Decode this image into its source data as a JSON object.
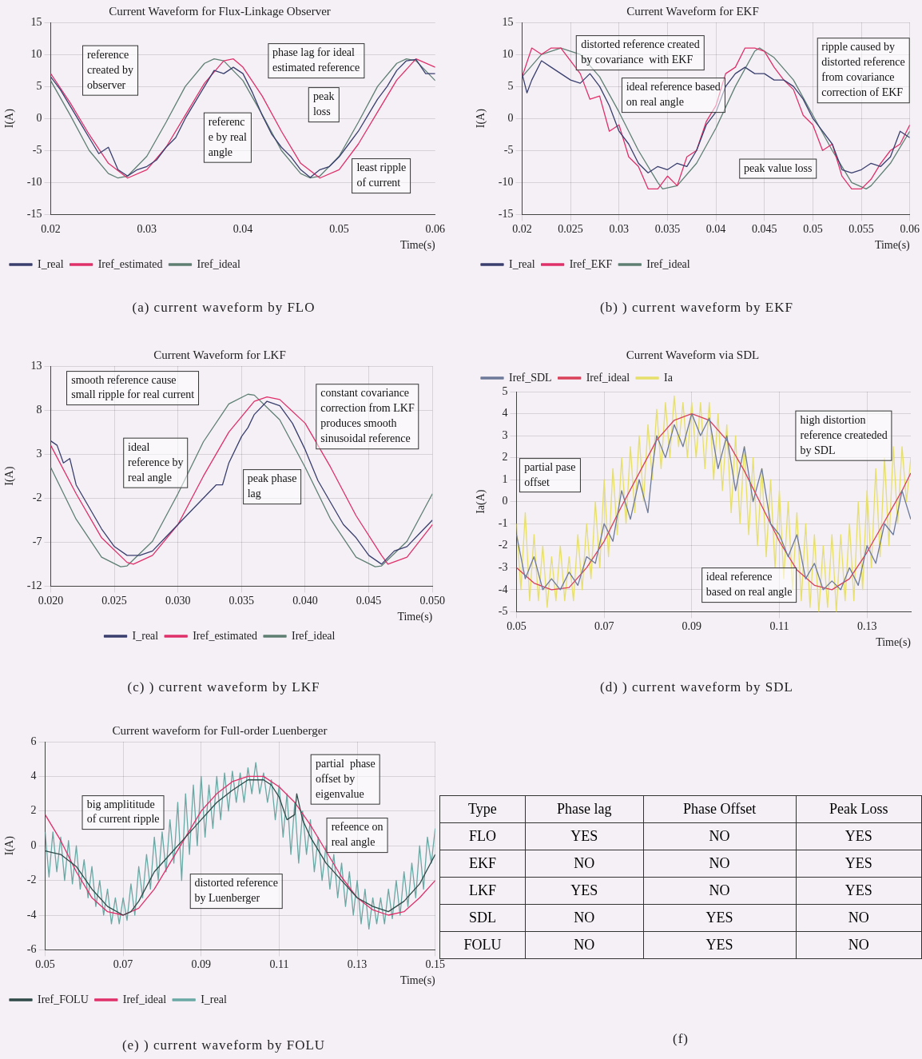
{
  "chart_data": [
    {
      "type": "line",
      "title": "Current Waveform for Flux-Linkage Observer",
      "xlabel": "Time(s)",
      "ylabel": "I(A)",
      "xlim": [
        0.02,
        0.06
      ],
      "xticks": [
        0.02,
        0.03,
        0.04,
        0.05,
        0.06
      ],
      "ylim": [
        -15,
        15
      ],
      "yticks": [
        -15,
        -10,
        -5,
        0,
        5,
        10,
        15
      ],
      "grid": "y",
      "legend": "bottom left",
      "series": [
        {
          "name": "I_real",
          "color": "#3a3f6e",
          "x": [
            0.02,
            0.021,
            0.022,
            0.023,
            0.024,
            0.025,
            0.026,
            0.027,
            0.028,
            0.029,
            0.03,
            0.031,
            0.032,
            0.033,
            0.034,
            0.035,
            0.036,
            0.037,
            0.038,
            0.039,
            0.04,
            0.041,
            0.042,
            0.043,
            0.044,
            0.045,
            0.046,
            0.047,
            0.048,
            0.049,
            0.05,
            0.051,
            0.052,
            0.053,
            0.054,
            0.055,
            0.056,
            0.057,
            0.058,
            0.059,
            0.06
          ],
          "values": [
            6.5,
            4.5,
            2.0,
            -0.5,
            -3.0,
            -5.5,
            -4.5,
            -8.0,
            -9.0,
            -8.0,
            -7.5,
            -6.5,
            -4.5,
            -3.0,
            0.0,
            2.5,
            5.0,
            7.5,
            7.0,
            8.0,
            7.0,
            4.0,
            0.5,
            -2.5,
            -4.5,
            -6.0,
            -8.0,
            -9.2,
            -8.0,
            -7.5,
            -6.0,
            -4.0,
            -2.0,
            0.5,
            3.0,
            5.0,
            7.5,
            9.0,
            9.2,
            7.0,
            7.0
          ]
        },
        {
          "name": "Iref_estimated",
          "color": "#e0306a",
          "x": [
            0.02,
            0.022,
            0.024,
            0.026,
            0.028,
            0.03,
            0.032,
            0.034,
            0.036,
            0.038,
            0.039,
            0.04,
            0.042,
            0.044,
            0.046,
            0.048,
            0.05,
            0.052,
            0.054,
            0.056,
            0.058,
            0.06
          ],
          "values": [
            7.0,
            2.5,
            -2.5,
            -7.0,
            -9.3,
            -8.0,
            -4.5,
            0.5,
            5.5,
            9.0,
            9.3,
            8.0,
            3.5,
            -2.0,
            -7.0,
            -9.3,
            -8.0,
            -4.0,
            1.0,
            6.0,
            9.3,
            8.0
          ]
        },
        {
          "name": "Iref_ideal",
          "color": "#5f7f73",
          "x": [
            0.02,
            0.022,
            0.024,
            0.026,
            0.027,
            0.028,
            0.03,
            0.032,
            0.034,
            0.036,
            0.037,
            0.038,
            0.04,
            0.042,
            0.044,
            0.046,
            0.047,
            0.048,
            0.05,
            0.052,
            0.054,
            0.056,
            0.057,
            0.058,
            0.06
          ],
          "values": [
            5.9,
            0.6,
            -5.0,
            -8.6,
            -9.3,
            -9.0,
            -5.9,
            -0.6,
            5.0,
            8.6,
            9.3,
            9.0,
            5.9,
            0.6,
            -5.0,
            -8.6,
            -9.3,
            -9.0,
            -5.9,
            -0.6,
            5.0,
            8.6,
            9.3,
            9.0,
            5.9
          ]
        }
      ],
      "annotations": [
        "(a) current waveform by FLO",
        "reference\ncreated by\nobserver",
        "phase lag for ideal\nestimated reference",
        "peak\nloss",
        "referenc\ne by real\nangle",
        "least ripple\nof current"
      ]
    },
    {
      "type": "line",
      "title": "Current Waveform for EKF",
      "xlabel": "Time(s)",
      "ylabel": "I(A)",
      "xlim": [
        0.02,
        0.06
      ],
      "xticks": [
        0.02,
        0.025,
        0.03,
        0.035,
        0.04,
        0.045,
        0.05,
        0.055,
        0.06
      ],
      "ylim": [
        -15,
        15
      ],
      "yticks": [
        -15,
        -10,
        -5,
        0,
        5,
        10,
        15
      ],
      "grid": true,
      "legend": "bottom left",
      "series": [
        {
          "name": "I_real",
          "color": "#3a3f6e",
          "x": [
            0.02,
            0.0205,
            0.021,
            0.022,
            0.023,
            0.024,
            0.025,
            0.026,
            0.027,
            0.028,
            0.029,
            0.03,
            0.031,
            0.032,
            0.033,
            0.034,
            0.035,
            0.036,
            0.037,
            0.038,
            0.039,
            0.04,
            0.041,
            0.042,
            0.043,
            0.044,
            0.045,
            0.046,
            0.047,
            0.048,
            0.049,
            0.05,
            0.051,
            0.052,
            0.053,
            0.054,
            0.055,
            0.056,
            0.057,
            0.058,
            0.059,
            0.06
          ],
          "values": [
            7,
            4,
            6,
            9,
            8,
            7,
            6,
            5.5,
            7,
            5,
            2,
            -2,
            -4,
            -7,
            -8.5,
            -7.5,
            -8,
            -7,
            -7.5,
            -5,
            -1,
            1,
            5,
            7,
            8,
            7,
            7,
            6,
            6,
            5,
            3,
            0,
            -2,
            -4,
            -8,
            -8.5,
            -8,
            -7,
            -7.5,
            -6,
            -2,
            -3
          ]
        },
        {
          "name": "Iref_EKF",
          "color": "#e0306a",
          "x": [
            0.02,
            0.021,
            0.022,
            0.023,
            0.024,
            0.025,
            0.026,
            0.027,
            0.028,
            0.029,
            0.03,
            0.031,
            0.032,
            0.033,
            0.034,
            0.035,
            0.036,
            0.037,
            0.038,
            0.039,
            0.04,
            0.041,
            0.042,
            0.043,
            0.044,
            0.045,
            0.046,
            0.047,
            0.048,
            0.049,
            0.05,
            0.051,
            0.052,
            0.053,
            0.054,
            0.055,
            0.056,
            0.057,
            0.058,
            0.059,
            0.06
          ],
          "values": [
            6.5,
            11,
            10,
            11,
            11,
            9,
            7,
            3,
            3.5,
            -2,
            -1,
            -6,
            -7.5,
            -11,
            -11,
            -9,
            -10.5,
            -6,
            -5,
            -0.5,
            2,
            7,
            8,
            11,
            11,
            10.5,
            8,
            6,
            4.5,
            0.5,
            -1,
            -5,
            -4,
            -9,
            -11,
            -11,
            -9.5,
            -7,
            -5,
            -4,
            -1
          ]
        },
        {
          "name": "Iref_ideal",
          "color": "#5f7f73",
          "x": [
            0.02,
            0.022,
            0.024,
            0.026,
            0.028,
            0.03,
            0.032,
            0.034,
            0.0345,
            0.036,
            0.038,
            0.04,
            0.042,
            0.044,
            0.0445,
            0.046,
            0.048,
            0.05,
            0.052,
            0.054,
            0.0555,
            0.056,
            0.058,
            0.06
          ],
          "values": [
            6.5,
            10,
            11,
            10,
            6.5,
            1,
            -5,
            -10,
            -11,
            -10.5,
            -7,
            -1.5,
            5,
            10.5,
            11,
            9.5,
            6,
            0.5,
            -5,
            -10,
            -11,
            -10.5,
            -7,
            -2
          ]
        }
      ],
      "annotations": [
        "(b) ) current waveform by EKF",
        "distorted reference created\nby covariance  with EKF",
        "ideal reference based\non real angle",
        "peak value loss",
        "ripple caused by\ndistorted reference\nfrom covariance\ncorrection of EKF"
      ]
    },
    {
      "type": "line",
      "title": "Current Waveform for LKF",
      "xlabel": "Time(s)",
      "ylabel": "I(A)",
      "xlim": [
        0.02,
        0.05
      ],
      "xticks": [
        {
          "value": 0.02,
          "label": "0.020"
        },
        {
          "value": 0.025,
          "label": "0.025"
        },
        {
          "value": 0.03,
          "label": "0.030"
        },
        {
          "value": 0.035,
          "label": "0.035"
        },
        {
          "value": 0.04,
          "label": "0.040"
        },
        {
          "value": 0.045,
          "label": "0.045"
        },
        {
          "value": 0.05,
          "label": "0.050"
        }
      ],
      "ylim": [
        -12,
        13
      ],
      "yticks": [
        -12,
        -7,
        -2,
        3,
        8,
        13
      ],
      "grid": true,
      "legend": "bottom",
      "series": [
        {
          "name": "I_real",
          "color": "#3a3f6e",
          "x": [
            0.02,
            0.0205,
            0.021,
            0.0215,
            0.022,
            0.023,
            0.024,
            0.025,
            0.026,
            0.027,
            0.028,
            0.029,
            0.03,
            0.031,
            0.032,
            0.033,
            0.0335,
            0.034,
            0.035,
            0.0355,
            0.036,
            0.037,
            0.038,
            0.039,
            0.04,
            0.041,
            0.042,
            0.043,
            0.044,
            0.045,
            0.046,
            0.047,
            0.048,
            0.049,
            0.05
          ],
          "values": [
            4.5,
            4,
            2,
            2.5,
            -0.5,
            -3,
            -5.5,
            -7.5,
            -8.5,
            -8.5,
            -8,
            -6.5,
            -5,
            -3.5,
            -2,
            -0.5,
            -0.5,
            2,
            5,
            6,
            7.5,
            9,
            8.5,
            6.5,
            3.5,
            0,
            -2.5,
            -5,
            -6.5,
            -8.5,
            -9.5,
            -8,
            -7.5,
            -6,
            -4.5
          ]
        },
        {
          "name": "Iref_estimated",
          "color": "#e0306a",
          "x": [
            0.02,
            0.022,
            0.024,
            0.026,
            0.0265,
            0.028,
            0.03,
            0.032,
            0.034,
            0.036,
            0.037,
            0.038,
            0.04,
            0.042,
            0.044,
            0.046,
            0.0465,
            0.048,
            0.05
          ],
          "values": [
            4,
            -1.5,
            -6.5,
            -9.3,
            -9.5,
            -8.5,
            -5,
            0.5,
            5.5,
            9,
            9.5,
            9.2,
            6.5,
            1.5,
            -4,
            -8.5,
            -9.5,
            -8.7,
            -5
          ]
        },
        {
          "name": "Iref_ideal",
          "color": "#5f7f73",
          "x": [
            0.02,
            0.022,
            0.024,
            0.0255,
            0.026,
            0.028,
            0.03,
            0.032,
            0.034,
            0.0355,
            0.036,
            0.038,
            0.04,
            0.042,
            0.044,
            0.0455,
            0.046,
            0.048,
            0.05
          ],
          "values": [
            1.5,
            -4.4,
            -8.7,
            -9.8,
            -9.7,
            -6.9,
            -1.5,
            4.4,
            8.7,
            9.8,
            9.7,
            6.9,
            1.5,
            -4.4,
            -8.7,
            -9.8,
            -9.7,
            -6.9,
            -1.5
          ]
        }
      ],
      "annotations": [
        "(c) ) current waveform by LKF",
        "smooth reference cause\nsmall ripple for real current",
        "ideal\nreference by\nreal angle",
        "peak phase\nlag",
        "constant covariance\ncorrection from LKF\nproduces smooth\nsinusoidal reference"
      ]
    },
    {
      "type": "line",
      "title": "Current Waveform via SDL",
      "xlabel": "Time(s)",
      "ylabel": "Ia(A)",
      "xlim": [
        0.05,
        0.14
      ],
      "xticks": [
        0.05,
        0.07,
        0.09,
        0.11,
        0.13
      ],
      "ylim": [
        -5,
        5
      ],
      "yticks": [
        -5,
        -4,
        -3,
        -2,
        -1,
        0,
        1,
        2,
        3,
        4,
        5
      ],
      "grid": true,
      "legend": "top left",
      "series": [
        {
          "name": "Iref_SDL",
          "color": "#6d7a99",
          "x": [
            0.05,
            0.052,
            0.054,
            0.056,
            0.058,
            0.06,
            0.062,
            0.064,
            0.066,
            0.068,
            0.07,
            0.072,
            0.074,
            0.076,
            0.078,
            0.08,
            0.081,
            0.082,
            0.084,
            0.086,
            0.088,
            0.09,
            0.092,
            0.094,
            0.096,
            0.098,
            0.1,
            0.102,
            0.104,
            0.106,
            0.108,
            0.11,
            0.112,
            0.114,
            0.116,
            0.118,
            0.12,
            0.122,
            0.124,
            0.126,
            0.128,
            0.13,
            0.132,
            0.134,
            0.136,
            0.138,
            0.14
          ],
          "values": [
            -1.5,
            -3.5,
            -2.5,
            -4,
            -3.5,
            -4,
            -3.2,
            -3.8,
            -2.5,
            -2.8,
            -1,
            -1.8,
            0.5,
            -0.8,
            1,
            -0.5,
            1.5,
            3,
            2,
            3.5,
            2.5,
            4,
            3,
            3.8,
            1.5,
            3,
            0.5,
            2.5,
            0,
            1.5,
            -1,
            -1.5,
            -2.5,
            -1.5,
            -3.5,
            -2.8,
            -4,
            -3.6,
            -4,
            -3,
            -3.8,
            -2,
            -2.8,
            -1,
            -1.5,
            0.5,
            -0.8
          ]
        },
        {
          "name": "Iref_ideal",
          "color": "#d9405a",
          "x": [
            0.05,
            0.054,
            0.058,
            0.062,
            0.066,
            0.07,
            0.074,
            0.078,
            0.082,
            0.086,
            0.09,
            0.094,
            0.098,
            0.102,
            0.106,
            0.11,
            0.114,
            0.118,
            0.122,
            0.126,
            0.13,
            0.134,
            0.138,
            0.14
          ],
          "values": [
            -3,
            -3.7,
            -4,
            -3.9,
            -3,
            -1.8,
            -0.2,
            1.3,
            2.8,
            3.7,
            4,
            3.7,
            2.8,
            1.4,
            -0.2,
            -1.8,
            -3.1,
            -3.8,
            -4,
            -3.5,
            -2.3,
            -0.9,
            0.5,
            1.3
          ]
        },
        {
          "name": "Ia",
          "color": "#e6df6a",
          "x": [
            0.05,
            0.051,
            0.052,
            0.053,
            0.054,
            0.055,
            0.056,
            0.057,
            0.058,
            0.059,
            0.06,
            0.061,
            0.062,
            0.063,
            0.064,
            0.065,
            0.066,
            0.067,
            0.068,
            0.069,
            0.07,
            0.071,
            0.072,
            0.073,
            0.074,
            0.075,
            0.076,
            0.077,
            0.078,
            0.079,
            0.08,
            0.081,
            0.082,
            0.083,
            0.084,
            0.085,
            0.086,
            0.087,
            0.088,
            0.089,
            0.09,
            0.091,
            0.092,
            0.093,
            0.094,
            0.095,
            0.096,
            0.097,
            0.098,
            0.099,
            0.1,
            0.101,
            0.102,
            0.103,
            0.104,
            0.105,
            0.106,
            0.107,
            0.108,
            0.109,
            0.11,
            0.111,
            0.112,
            0.113,
            0.114,
            0.115,
            0.116,
            0.117,
            0.118,
            0.119,
            0.12,
            0.121,
            0.122,
            0.123,
            0.124,
            0.125,
            0.126,
            0.127,
            0.128,
            0.129,
            0.13,
            0.131,
            0.132,
            0.133,
            0.134,
            0.135,
            0.136,
            0.137,
            0.138,
            0.139,
            0.14
          ],
          "values": [
            -1,
            -4,
            -0.5,
            -4.5,
            -1.5,
            -4.5,
            -2,
            -4.8,
            -2.5,
            -4.5,
            -2,
            -4.5,
            -2.5,
            -4.5,
            -1.5,
            -4,
            -1,
            -3.5,
            0,
            -3,
            1,
            -2.5,
            1.5,
            -1.5,
            2,
            -1,
            2.5,
            -0.5,
            3,
            0,
            3.5,
            1,
            4.2,
            1.5,
            4.5,
            2,
            4.8,
            2.5,
            4.5,
            2,
            4.5,
            2,
            4.5,
            1.5,
            4.5,
            1,
            4,
            0.5,
            3.5,
            -0.5,
            3,
            -1,
            2.5,
            -1.5,
            2,
            -2,
            1.5,
            -2.5,
            1,
            -3,
            0.5,
            -3.5,
            0,
            -4,
            -0.5,
            -4.5,
            -1,
            -4.8,
            -1.5,
            -5,
            -2,
            -4.8,
            -1.5,
            -5,
            -1.5,
            -4.5,
            -1,
            -4.5,
            0,
            -4,
            0.5,
            -3,
            1.5,
            -2.5,
            2,
            -2,
            2.5,
            -1,
            2.5,
            0,
            2
          ]
        }
      ],
      "annotations": [
        "(d) ) current waveform by SDL",
        "partial pase\noffset",
        "high distortion\nreference createded\nby SDL",
        "ideal reference\nbased on real angle"
      ]
    },
    {
      "type": "line",
      "title": "Current waveform for Full-order Luenberger",
      "xlabel": "Time(s)",
      "ylabel": "I(A)",
      "xlim": [
        0.05,
        0.15
      ],
      "xticks": [
        0.05,
        0.07,
        0.09,
        0.11,
        0.13,
        0.15
      ],
      "ylim": [
        -6,
        6
      ],
      "yticks": [
        -6,
        -4,
        -2,
        0,
        2,
        4,
        6
      ],
      "grid": true,
      "legend": "bottom left",
      "series": [
        {
          "name": "Iref_FOLU",
          "color": "#2f4a48",
          "x": [
            0.05,
            0.054,
            0.058,
            0.062,
            0.066,
            0.07,
            0.072,
            0.074,
            0.078,
            0.082,
            0.086,
            0.09,
            0.094,
            0.098,
            0.102,
            0.106,
            0.108,
            0.11,
            0.112,
            0.114,
            0.1145,
            0.116,
            0.118,
            0.122,
            0.126,
            0.13,
            0.134,
            0.138,
            0.142,
            0.146,
            0.15
          ],
          "values": [
            -0.3,
            -0.5,
            -1.2,
            -2.5,
            -3.5,
            -4,
            -3.8,
            -3.2,
            -1.5,
            -0.5,
            0.5,
            1.5,
            2.5,
            3.2,
            3.8,
            3.8,
            3.5,
            2.8,
            1.5,
            1.8,
            3,
            1.5,
            0.5,
            -1,
            -2,
            -3,
            -3.5,
            -3.8,
            -3.2,
            -2.2,
            -0.5
          ]
        },
        {
          "name": "Iref_ideal",
          "color": "#e0306a",
          "x": [
            0.05,
            0.054,
            0.058,
            0.062,
            0.066,
            0.07,
            0.074,
            0.078,
            0.082,
            0.086,
            0.09,
            0.094,
            0.098,
            0.102,
            0.106,
            0.11,
            0.114,
            0.118,
            0.122,
            0.126,
            0.13,
            0.134,
            0.138,
            0.142,
            0.146,
            0.15
          ],
          "values": [
            1.8,
            0.3,
            -1.5,
            -3,
            -3.8,
            -4,
            -3.6,
            -2.5,
            -1,
            0.5,
            2,
            3,
            3.7,
            4,
            4,
            3.4,
            2.5,
            1.2,
            -0.3,
            -1.8,
            -3,
            -3.7,
            -4,
            -3.8,
            -3,
            -2
          ]
        },
        {
          "name": "I_real",
          "color": "#6aa8a4",
          "x": [
            0.05,
            0.051,
            0.052,
            0.053,
            0.054,
            0.055,
            0.056,
            0.057,
            0.058,
            0.059,
            0.06,
            0.061,
            0.062,
            0.063,
            0.064,
            0.065,
            0.066,
            0.067,
            0.068,
            0.069,
            0.07,
            0.071,
            0.072,
            0.073,
            0.074,
            0.075,
            0.076,
            0.077,
            0.078,
            0.079,
            0.08,
            0.081,
            0.082,
            0.083,
            0.084,
            0.085,
            0.086,
            0.087,
            0.088,
            0.089,
            0.09,
            0.091,
            0.092,
            0.093,
            0.094,
            0.095,
            0.096,
            0.097,
            0.098,
            0.099,
            0.1,
            0.101,
            0.102,
            0.103,
            0.104,
            0.105,
            0.106,
            0.107,
            0.108,
            0.109,
            0.11,
            0.111,
            0.112,
            0.113,
            0.114,
            0.115,
            0.116,
            0.117,
            0.118,
            0.119,
            0.12,
            0.121,
            0.122,
            0.123,
            0.124,
            0.125,
            0.126,
            0.127,
            0.128,
            0.129,
            0.13,
            0.131,
            0.132,
            0.133,
            0.134,
            0.135,
            0.136,
            0.137,
            0.138,
            0.139,
            0.14,
            0.141,
            0.142,
            0.143,
            0.144,
            0.145,
            0.146,
            0.147,
            0.148,
            0.149,
            0.15
          ],
          "values": [
            0.8,
            -1.8,
            0.8,
            -1.5,
            0.5,
            -2,
            0.3,
            -2.2,
            0,
            -2.5,
            -0.8,
            -3,
            -1.2,
            -3.5,
            -2,
            -4,
            -2.5,
            -4.5,
            -3,
            -4.5,
            -3,
            -4.3,
            -2.2,
            -4,
            -1.2,
            -3,
            -0.5,
            -2.5,
            0.5,
            -2,
            0.8,
            -1.5,
            1.5,
            -1,
            2.5,
            -2,
            3,
            -0.5,
            3.5,
            0,
            4,
            0.5,
            3.5,
            1,
            4,
            1.5,
            4.2,
            2,
            4.3,
            2.5,
            4.2,
            2.5,
            4.5,
            3,
            4.8,
            3,
            4.2,
            2.5,
            3.8,
            1.5,
            3.5,
            0.5,
            3,
            -0.5,
            2.5,
            -1,
            2,
            -0.5,
            1.5,
            -1.5,
            0.5,
            -2,
            0,
            -2.5,
            -0.5,
            -3,
            -1,
            -3.5,
            -1.5,
            -4,
            -2,
            -4.5,
            -2.5,
            -4.8,
            -3,
            -4.5,
            -3,
            -4.5,
            -2.5,
            -4.2,
            -2,
            -4,
            -1.5,
            -3.5,
            -1,
            -3,
            0,
            -2.5,
            0.5,
            -1,
            1
          ]
        }
      ],
      "annotations": [
        "(e) ) current waveform by FOLU",
        "big amplititude\nof current ripple",
        "distorted reference\nby Luenberger",
        "partial  phase\noffset by\neigenvalue",
        "refeence on\nreal angle"
      ]
    },
    {
      "type": "other",
      "categories": [
        "Type",
        "Phase lag",
        "Phase Offset",
        "Peak Loss"
      ],
      "y_categories": [
        "FLO",
        "EKF",
        "LKF",
        "SDL",
        "FOLU"
      ],
      "cell_labels": [
        [
          "YES",
          "NO",
          "YES"
        ],
        [
          "NO",
          "NO",
          "YES"
        ],
        [
          "YES",
          "NO",
          "YES"
        ],
        [
          "NO",
          "YES",
          "NO"
        ],
        [
          "NO",
          "YES",
          "NO"
        ]
      ],
      "annotations": [
        "(f)"
      ]
    }
  ]
}
